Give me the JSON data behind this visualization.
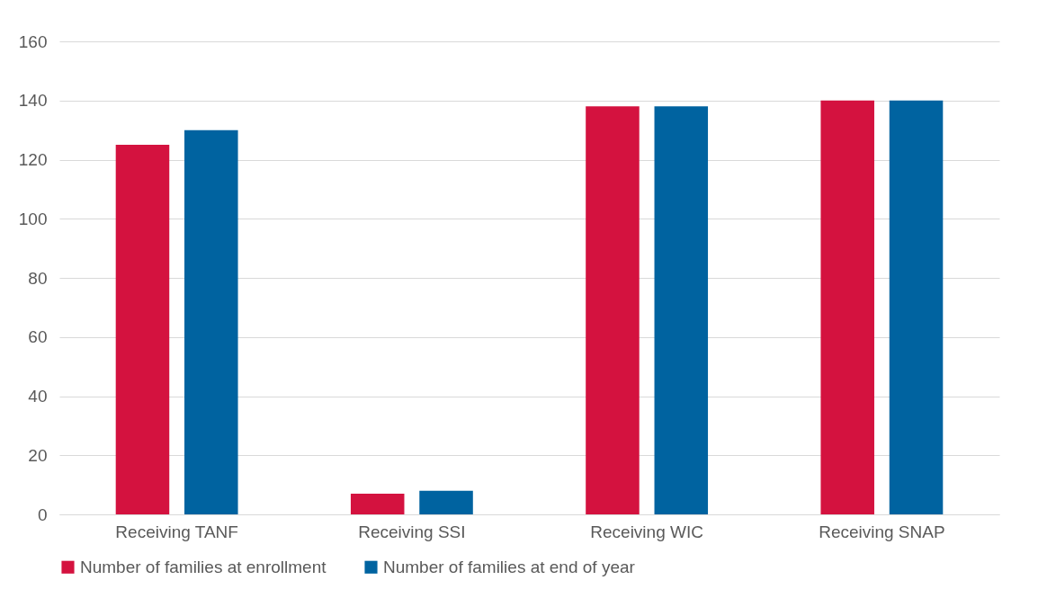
{
  "chart_data": {
    "type": "bar",
    "categories": [
      "Receiving TANF",
      "Receiving SSI",
      "Receiving WIC",
      "Receiving SNAP"
    ],
    "series": [
      {
        "name": "Number of families at enrollment",
        "color": "#d4123f",
        "values": [
          125,
          7,
          138,
          140
        ]
      },
      {
        "name": "Number of families at end of year",
        "color": "#0063a0",
        "values": [
          130,
          8,
          138,
          140
        ]
      }
    ],
    "ylim": [
      0,
      160
    ],
    "yticks": [
      0,
      20,
      40,
      60,
      80,
      100,
      120,
      140,
      160
    ],
    "grid": "y",
    "legend": "bottom"
  }
}
